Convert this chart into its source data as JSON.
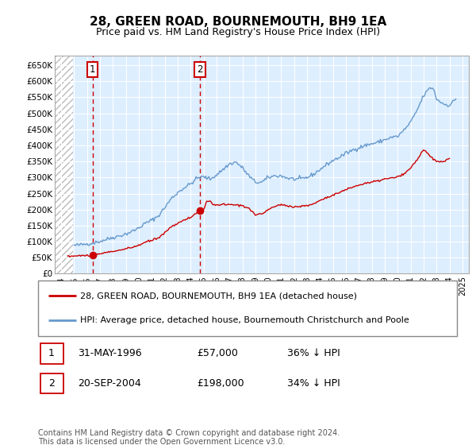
{
  "title": "28, GREEN ROAD, BOURNEMOUTH, BH9 1EA",
  "subtitle": "Price paid vs. HM Land Registry's House Price Index (HPI)",
  "ylabel_ticks": [
    "£0",
    "£50K",
    "£100K",
    "£150K",
    "£200K",
    "£250K",
    "£300K",
    "£350K",
    "£400K",
    "£450K",
    "£500K",
    "£550K",
    "£600K",
    "£650K"
  ],
  "ytick_values": [
    0,
    50000,
    100000,
    150000,
    200000,
    250000,
    300000,
    350000,
    400000,
    450000,
    500000,
    550000,
    600000,
    650000
  ],
  "ylim": [
    0,
    680000
  ],
  "xlim_start": 1993.5,
  "xlim_end": 2025.5,
  "xticks": [
    1994,
    1995,
    1996,
    1997,
    1998,
    1999,
    2000,
    2001,
    2002,
    2003,
    2004,
    2005,
    2006,
    2007,
    2008,
    2009,
    2010,
    2011,
    2012,
    2013,
    2014,
    2015,
    2016,
    2017,
    2018,
    2019,
    2020,
    2021,
    2022,
    2023,
    2024,
    2025
  ],
  "sale1_x": 1996.42,
  "sale1_y": 57000,
  "sale1_label": "1",
  "sale2_x": 2004.72,
  "sale2_y": 198000,
  "sale2_label": "2",
  "legend_line1": "28, GREEN ROAD, BOURNEMOUTH, BH9 1EA (detached house)",
  "legend_line2": "HPI: Average price, detached house, Bournemouth Christchurch and Poole",
  "table_row1_num": "1",
  "table_row1_date": "31-MAY-1996",
  "table_row1_price": "£57,000",
  "table_row1_hpi": "36% ↓ HPI",
  "table_row2_num": "2",
  "table_row2_date": "20-SEP-2004",
  "table_row2_price": "£198,000",
  "table_row2_hpi": "34% ↓ HPI",
  "footer": "Contains HM Land Registry data © Crown copyright and database right 2024.\nThis data is licensed under the Open Government Licence v3.0.",
  "sale_color": "#cc0000",
  "hpi_color": "#6699cc",
  "plot_bg_color": "#ddeeff",
  "grid_color": "#ffffff",
  "annotation_box_color": "#cc0000"
}
